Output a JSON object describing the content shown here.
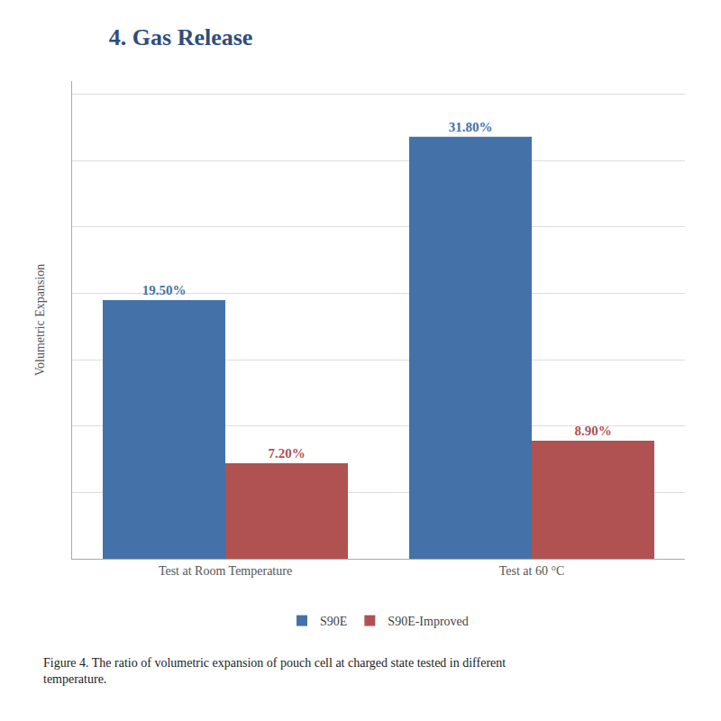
{
  "chart_data": {
    "type": "bar",
    "title": "4. Gas Release",
    "ylabel": "Volumetric Expansion",
    "caption": "Figure 4. The ratio of volumetric expansion of pouch cell at charged state tested in different\ntemperature.",
    "categories": [
      "Test at Room Temperature",
      "Test at 60 °C"
    ],
    "series": [
      {
        "name": "S90E",
        "color": "#4472A8",
        "values": [
          19.5,
          31.8
        ],
        "value_labels": [
          "19.50%",
          "31.80%"
        ]
      },
      {
        "name": "S90E-Improved",
        "color": "#B05252",
        "values": [
          7.2,
          8.9
        ],
        "value_labels": [
          "7.20%",
          "8.90%"
        ]
      }
    ],
    "ylim": [
      0,
      36
    ],
    "yticks": [
      0,
      5,
      10,
      15,
      20,
      25,
      30,
      35
    ],
    "grid": true,
    "legend": "bottom",
    "data_labels": true,
    "tick_labels": "x"
  }
}
